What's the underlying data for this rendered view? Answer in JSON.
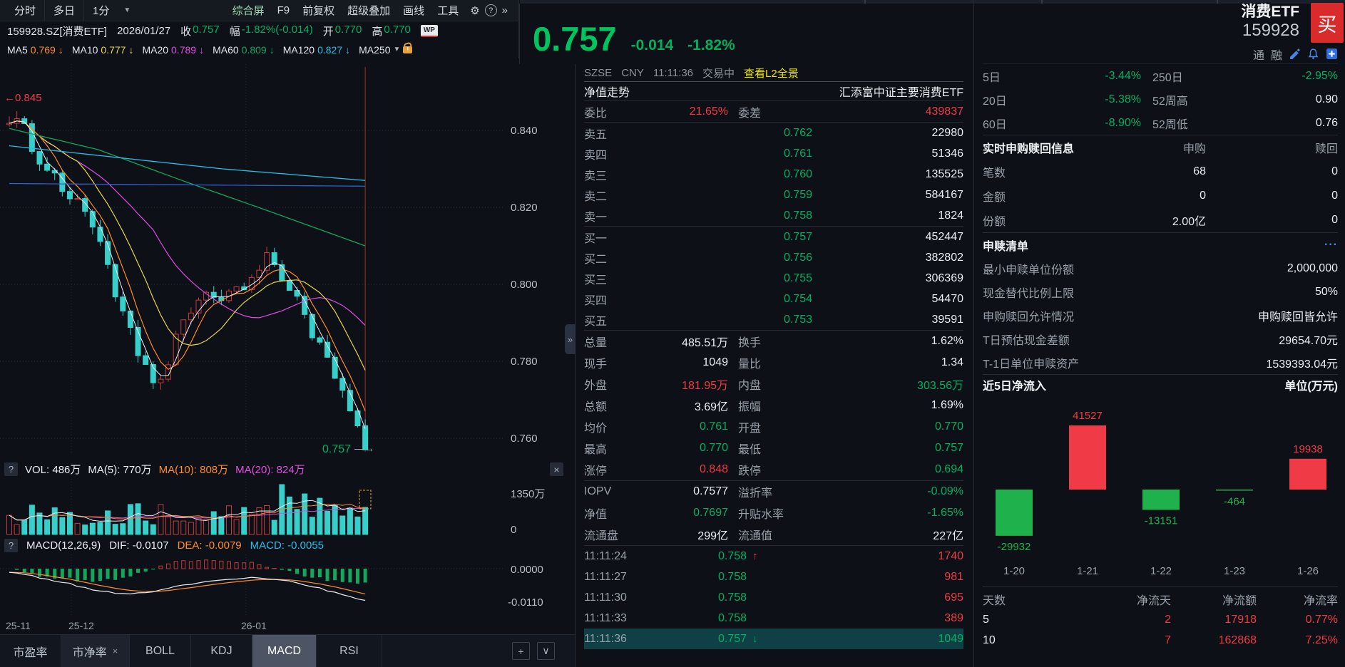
{
  "left": {
    "toolbar": {
      "tabs": [
        "分时",
        "多日",
        "1分"
      ],
      "caret": "▼",
      "menu": [
        "综合屏",
        "F9",
        "前复权",
        "超级叠加",
        "画线",
        "工具"
      ],
      "gear": "⚙",
      "help": "?",
      "more": "»"
    },
    "info": {
      "symbol": "159928.SZ[消费ETF]",
      "date": "2026/01/27",
      "close_label": "收",
      "close": "0.757",
      "range_label": "幅",
      "range": "-1.82%(-0.014)",
      "open_label": "开",
      "open": "0.770",
      "high_label": "高",
      "high": "0.770",
      "wp_icon": "WP"
    },
    "ma_items": [
      {
        "label": "MA5",
        "value": "0.769",
        "arrow": "↓",
        "cls": "c-org"
      },
      {
        "label": "MA10",
        "value": "0.777",
        "arrow": "↓",
        "cls": "c-yel"
      },
      {
        "label": "MA20",
        "value": "0.789",
        "arrow": "↓",
        "cls": "c-mag"
      },
      {
        "label": "MA60",
        "value": "0.809",
        "arrow": "↓",
        "cls": "c-grn"
      },
      {
        "label": "MA120",
        "value": "0.827",
        "arrow": "↓",
        "cls": "c-cyn"
      },
      {
        "label": "MA250",
        "value": "",
        "arrow": "▼",
        "cls": "c-wht"
      }
    ],
    "price_tags": {
      "high": "←0.845",
      "last": "0.757",
      "last_arrow": "→"
    },
    "vol_header": {
      "help": "?",
      "text_vol": "VOL: 486万",
      "text_ma5": "MA(5): 770万",
      "text_ma10": "MA(10): 808万",
      "text_ma20": "MA(20): 824万",
      "close": "×"
    },
    "macd_header": {
      "help": "?",
      "title": "MACD(12,26,9)",
      "dif": "DIF: -0.0107",
      "dea": "DEA: -0.0079",
      "macd": "MACD: -0.0055"
    },
    "x_labels": [
      "25-11",
      "25-12",
      "26-01"
    ],
    "tabs": [
      {
        "label": "市盈率",
        "close": ""
      },
      {
        "label": "市净率",
        "close": "×"
      },
      {
        "label": "BOLL",
        "close": ""
      },
      {
        "label": "KDJ",
        "close": ""
      },
      {
        "label": "MACD",
        "close": ""
      },
      {
        "label": "RSI",
        "close": ""
      }
    ],
    "tab_add": "+",
    "tab_collapse": "∨"
  },
  "mid": {
    "price": "0.757",
    "change": "-0.014",
    "pct": "-1.82%",
    "meta": {
      "exchange": "SZSE",
      "currency": "CNY",
      "time": "11:11:36",
      "status": "交易中",
      "l2": "查看L2全景"
    },
    "nav": {
      "label": "净值走势",
      "fund": "汇添富中证主要消费ETF"
    },
    "wb": {
      "l1": "委比",
      "v1": "21.65%",
      "l2": "委差",
      "v2": "439837"
    },
    "asks": [
      {
        "l": "卖五",
        "p": "0.762",
        "v": "22980"
      },
      {
        "l": "卖四",
        "p": "0.761",
        "v": "51346"
      },
      {
        "l": "卖三",
        "p": "0.760",
        "v": "135525"
      },
      {
        "l": "卖二",
        "p": "0.759",
        "v": "584167"
      },
      {
        "l": "卖一",
        "p": "0.758",
        "v": "1824"
      }
    ],
    "bids": [
      {
        "l": "买一",
        "p": "0.757",
        "v": "452447"
      },
      {
        "l": "买二",
        "p": "0.756",
        "v": "382802"
      },
      {
        "l": "买三",
        "p": "0.755",
        "v": "306369"
      },
      {
        "l": "买四",
        "p": "0.754",
        "v": "54470"
      },
      {
        "l": "买五",
        "p": "0.753",
        "v": "39591"
      }
    ],
    "stats": [
      {
        "l1": "总量",
        "v1": "485.51万",
        "k1": "c-wht",
        "l2": "换手",
        "v2": "1.62%",
        "k2": "c-wht"
      },
      {
        "l1": "现手",
        "v1": "1049",
        "k1": "c-wht",
        "l2": "量比",
        "v2": "1.34",
        "k2": "c-wht"
      },
      {
        "l1": "外盘",
        "v1": "181.95万",
        "k1": "c-red",
        "l2": "内盘",
        "v2": "303.56万",
        "k2": "c-grn2"
      },
      {
        "l1": "总额",
        "v1": "3.69亿",
        "k1": "c-wht",
        "l2": "振幅",
        "v2": "1.69%",
        "k2": "c-wht"
      },
      {
        "l1": "均价",
        "v1": "0.761",
        "k1": "c-grn2",
        "l2": "开盘",
        "v2": "0.770",
        "k2": "c-grn2"
      },
      {
        "l1": "最高",
        "v1": "0.770",
        "k1": "c-grn2",
        "l2": "最低",
        "v2": "0.757",
        "k2": "c-grn2"
      },
      {
        "l1": "涨停",
        "v1": "0.848",
        "k1": "c-red",
        "l2": "跌停",
        "v2": "0.694",
        "k2": "c-grn2"
      }
    ],
    "iopv": [
      {
        "l1": "IOPV",
        "v1": "0.7577",
        "k1": "c-wht",
        "l2": "溢折率",
        "v2": "-0.09%",
        "k2": "c-grn2"
      },
      {
        "l1": "净值",
        "v1": "0.7697",
        "k1": "c-grn2",
        "l2": "升贴水率",
        "v2": "-1.65%",
        "k2": "c-grn2"
      },
      {
        "l1": "流通盘",
        "v1": "299亿",
        "k1": "c-wht",
        "l2": "流通值",
        "v2": "227亿",
        "k2": "c-wht"
      }
    ],
    "ticks": [
      {
        "t": "11:11:24",
        "p": "0.758",
        "pk": "c-grn2",
        "a": "↑",
        "ak": "c-red",
        "v": "1740",
        "vk": "c-red"
      },
      {
        "t": "11:11:27",
        "p": "0.758",
        "pk": "c-grn2",
        "a": "",
        "ak": "",
        "v": "981",
        "vk": "c-red"
      },
      {
        "t": "11:11:30",
        "p": "0.758",
        "pk": "c-grn2",
        "a": "",
        "ak": "",
        "v": "695",
        "vk": "c-red"
      },
      {
        "t": "11:11:33",
        "p": "0.758",
        "pk": "c-grn2",
        "a": "",
        "ak": "",
        "v": "389",
        "vk": "c-red"
      },
      {
        "t": "11:11:36",
        "p": "0.757",
        "pk": "c-grn2",
        "a": "↓",
        "ak": "c-grn2",
        "v": "1049",
        "vk": "c-grn2"
      }
    ],
    "expander": "»"
  },
  "right": {
    "name": "消费ETF",
    "code": "159928",
    "buy": "买",
    "margin_t": "通",
    "margin_r": "融",
    "perf": [
      {
        "l1": "5日",
        "v1": "-3.44%",
        "k1": "c-grn2",
        "l2": "250日",
        "v2": "-2.95%",
        "k2": "c-grn2"
      },
      {
        "l1": "20日",
        "v1": "-5.38%",
        "k1": "c-grn2",
        "l2": "52周高",
        "v2": "0.90",
        "k2": "c-wht"
      },
      {
        "l1": "60日",
        "v1": "-8.90%",
        "k1": "c-grn2",
        "l2": "52周低",
        "v2": "0.76",
        "k2": "c-wht"
      }
    ],
    "subs": {
      "title": "实时申购赎回信息",
      "c1": "申购",
      "c2": "赎回",
      "rows": [
        {
          "l": "笔数",
          "a": "68",
          "b": "0"
        },
        {
          "l": "金额",
          "a": "0",
          "b": "0"
        },
        {
          "l": "份额",
          "a": "2.00亿",
          "b": "0"
        }
      ]
    },
    "list": {
      "title": "申赎清单",
      "more": "···",
      "rows": [
        {
          "l": "最小申赎单位份额",
          "v": "2,000,000"
        },
        {
          "l": "现金替代比例上限",
          "v": "50%"
        },
        {
          "l": "申购赎回允许情况",
          "v": "申购赎回皆允许"
        },
        {
          "l": "T日预估现金差额",
          "v": "29654.70元"
        },
        {
          "l": "T-1日单位申赎资产",
          "v": "1539393.04元"
        }
      ]
    },
    "flow": {
      "title": "近5日净流入",
      "unit": "单位(万元)"
    },
    "table": {
      "h0": "天数",
      "h1": "净流天",
      "h2": "净流额",
      "h3": "净流率",
      "rows": [
        {
          "c0": "5",
          "c1": "2",
          "c2": "17918",
          "c3": "0.77%"
        },
        {
          "c0": "10",
          "c1": "7",
          "c2": "162868",
          "c3": "7.25%"
        }
      ]
    }
  },
  "chart_data": [
    {
      "type": "candlestick",
      "title": "159928.SZ 消费ETF 日K线",
      "y_ticks": [
        0.84,
        0.82,
        0.8,
        0.78,
        0.76
      ],
      "x_ticks": [
        "25-11",
        "25-12",
        "26-01"
      ],
      "period_high": 0.845,
      "last_price": 0.757,
      "n": 48,
      "ylim": [
        0.7545,
        0.8587
      ],
      "trend_anchors": [
        [
          0,
          0.841
        ],
        [
          0.03,
          0.845
        ],
        [
          0.08,
          0.832
        ],
        [
          0.13,
          0.828
        ],
        [
          0.18,
          0.822
        ],
        [
          0.22,
          0.818
        ],
        [
          0.27,
          0.806
        ],
        [
          0.32,
          0.792
        ],
        [
          0.37,
          0.78
        ],
        [
          0.41,
          0.773
        ],
        [
          0.45,
          0.781
        ],
        [
          0.5,
          0.793
        ],
        [
          0.55,
          0.799
        ],
        [
          0.6,
          0.795
        ],
        [
          0.63,
          0.801
        ],
        [
          0.66,
          0.798
        ],
        [
          0.7,
          0.803
        ],
        [
          0.73,
          0.808
        ],
        [
          0.76,
          0.801
        ],
        [
          0.8,
          0.797
        ],
        [
          0.84,
          0.789
        ],
        [
          0.88,
          0.783
        ],
        [
          0.91,
          0.778
        ],
        [
          0.94,
          0.772
        ],
        [
          0.97,
          0.7665
        ],
        [
          1,
          0.757
        ]
      ],
      "ma60_anchors": [
        [
          0,
          0.8405
        ],
        [
          0.25,
          0.835
        ],
        [
          0.5,
          0.8265
        ],
        [
          0.7,
          0.82
        ],
        [
          0.85,
          0.815
        ],
        [
          1,
          0.81
        ]
      ],
      "ma120_anchors": [
        [
          0,
          0.836
        ],
        [
          0.3,
          0.833
        ],
        [
          0.6,
          0.83
        ],
        [
          1,
          0.827
        ]
      ],
      "ma250_anchors": [
        [
          0,
          0.8262
        ],
        [
          1,
          0.8255
        ]
      ],
      "ma_values": {
        "MA5": 0.769,
        "MA10": 0.777,
        "MA20": 0.789,
        "MA60": 0.809,
        "MA120": 0.827
      }
    },
    {
      "type": "bar",
      "name": "volume",
      "y_axis_top": "1350万",
      "y_axis_bottom": "0",
      "current_vol": "486万",
      "ma": {
        "MA5": "770万",
        "MA10": "808万",
        "MA20": "824万"
      }
    },
    {
      "type": "line",
      "name": "MACD(12,26,9)",
      "dif": -0.0107,
      "dea": -0.0079,
      "macd": -0.0055,
      "y_axis_labels": [
        "0.0000",
        "-0.0110"
      ],
      "dif_anchors": [
        [
          0,
          -0.0012
        ],
        [
          0.08,
          -0.0028
        ],
        [
          0.16,
          -0.0048
        ],
        [
          0.25,
          -0.0072
        ],
        [
          0.33,
          -0.0085
        ],
        [
          0.42,
          -0.0072
        ],
        [
          0.5,
          -0.0052
        ],
        [
          0.58,
          -0.0036
        ],
        [
          0.66,
          -0.003
        ],
        [
          0.73,
          -0.0034
        ],
        [
          0.8,
          -0.0044
        ],
        [
          0.87,
          -0.0062
        ],
        [
          0.93,
          -0.0085
        ],
        [
          1,
          -0.0107
        ]
      ]
    },
    {
      "type": "bar",
      "name": "近5日净流入",
      "unit": "万元",
      "categories": [
        "1-20",
        "1-21",
        "1-22",
        "1-23",
        "1-26"
      ],
      "values": [
        -29932,
        41527,
        -13151,
        -464,
        19938
      ],
      "pos_color": "#f03a45",
      "neg_color": "#1fb14c"
    }
  ],
  "colors": {
    "up_red": "#ef3a44",
    "down_green": "#00b05f",
    "candle_teal": "#36cfca",
    "accent_yellow": "#f0e400",
    "link_blue": "#4a86e8",
    "buy_red": "#d92b2b"
  }
}
